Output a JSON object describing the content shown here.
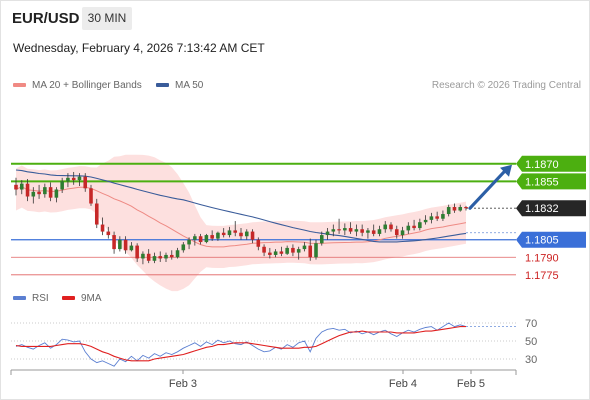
{
  "header": {
    "symbol": "EUR/USD",
    "timeframe": "30 MIN",
    "datetime": "Wednesday, February 4, 2026 7:13:42 AM CET",
    "credit": "Research © 2026 Trading Central"
  },
  "legend": {
    "main": [
      {
        "label": "MA 20 + Bollinger Bands",
        "color": "#f08a84"
      },
      {
        "label": "MA 50",
        "color": "#3a5c9a"
      }
    ],
    "rsi": [
      {
        "label": "RSI",
        "color": "#5b7fd1"
      },
      {
        "label": "9MA",
        "color": "#e02020"
      }
    ]
  },
  "colors": {
    "up": "#2e7d32",
    "down": "#c62828",
    "resistance": "#4caf10",
    "support": "#3a6fd8",
    "support_minor": "#e06060",
    "current": "#262626",
    "arrow": "#2c5fa6",
    "band_fill": "#fde0df"
  },
  "chart_data": [
    {
      "type": "candlestick",
      "x_labels": [
        "Feb 3",
        "Feb 4",
        "Feb 5"
      ],
      "ylim": [
        1.1762,
        1.1928
      ],
      "levels": [
        {
          "value": "1.1870",
          "type": "resistance",
          "label": "1.1870"
        },
        {
          "value": "1.1855",
          "type": "resistance",
          "label": "1.1855"
        },
        {
          "value": "1.1832",
          "type": "current",
          "label": "1.1832"
        },
        {
          "value": "1.1805",
          "type": "support",
          "label": "1.1805"
        },
        {
          "value": "1.1790",
          "type": "support_minor",
          "label": "1.1790"
        },
        {
          "value": "1.1775",
          "type": "support_minor",
          "label": "1.1775"
        }
      ],
      "projection": {
        "from": 1.1832,
        "to": 1.187,
        "direction": "up"
      },
      "candles_ohlc": [
        [
          1.1852,
          1.1858,
          1.1843,
          1.1848
        ],
        [
          1.1848,
          1.1856,
          1.1844,
          1.1853
        ],
        [
          1.1853,
          1.1857,
          1.1838,
          1.1842
        ],
        [
          1.1842,
          1.185,
          1.1836,
          1.1846
        ],
        [
          1.1846,
          1.1852,
          1.184,
          1.1844
        ],
        [
          1.1844,
          1.1853,
          1.1841,
          1.185
        ],
        [
          1.185,
          1.1854,
          1.1838,
          1.1841
        ],
        [
          1.1841,
          1.185,
          1.1837,
          1.1848
        ],
        [
          1.1848,
          1.1858,
          1.1845,
          1.1855
        ],
        [
          1.1855,
          1.1862,
          1.185,
          1.1858
        ],
        [
          1.1858,
          1.1863,
          1.1852,
          1.1856
        ],
        [
          1.1856,
          1.1862,
          1.1851,
          1.1859
        ],
        [
          1.1859,
          1.1862,
          1.1846,
          1.1849
        ],
        [
          1.1849,
          1.1852,
          1.1834,
          1.1836
        ],
        [
          1.1836,
          1.184,
          1.1815,
          1.1818
        ],
        [
          1.1818,
          1.1824,
          1.1809,
          1.1812
        ],
        [
          1.1812,
          1.1816,
          1.1806,
          1.1809
        ],
        [
          1.1809,
          1.1812,
          1.1793,
          1.1797
        ],
        [
          1.1797,
          1.1808,
          1.1795,
          1.1805
        ],
        [
          1.1805,
          1.1808,
          1.1793,
          1.1796
        ],
        [
          1.1796,
          1.1803,
          1.1795,
          1.18
        ],
        [
          1.18,
          1.1802,
          1.1786,
          1.1789
        ],
        [
          1.1789,
          1.1795,
          1.1784,
          1.1793
        ],
        [
          1.1793,
          1.1797,
          1.1785,
          1.1787
        ],
        [
          1.1787,
          1.1794,
          1.1785,
          1.1791
        ],
        [
          1.1791,
          1.1795,
          1.1786,
          1.1789
        ],
        [
          1.1789,
          1.1794,
          1.1786,
          1.1792
        ],
        [
          1.1792,
          1.1796,
          1.1788,
          1.179
        ],
        [
          1.179,
          1.1798,
          1.1789,
          1.1796
        ],
        [
          1.1796,
          1.1803,
          1.1794,
          1.1801
        ],
        [
          1.1801,
          1.1807,
          1.1797,
          1.1805
        ],
        [
          1.1805,
          1.181,
          1.18,
          1.1808
        ],
        [
          1.1808,
          1.181,
          1.1801,
          1.1803
        ],
        [
          1.1803,
          1.181,
          1.1802,
          1.1809
        ],
        [
          1.1809,
          1.1813,
          1.1804,
          1.1806
        ],
        [
          1.1806,
          1.1812,
          1.1804,
          1.1811
        ],
        [
          1.1811,
          1.1815,
          1.1807,
          1.1809
        ],
        [
          1.1809,
          1.1816,
          1.1807,
          1.1813
        ],
        [
          1.1813,
          1.1821,
          1.1808,
          1.1811
        ],
        [
          1.1811,
          1.1815,
          1.1805,
          1.1808
        ],
        [
          1.1808,
          1.1814,
          1.1805,
          1.1812
        ],
        [
          1.1812,
          1.1814,
          1.1802,
          1.1805
        ],
        [
          1.1805,
          1.1807,
          1.1796,
          1.1799
        ],
        [
          1.1799,
          1.1801,
          1.1791,
          1.1794
        ],
        [
          1.1794,
          1.1798,
          1.1789,
          1.1792
        ],
        [
          1.1792,
          1.1797,
          1.179,
          1.1795
        ],
        [
          1.1795,
          1.1799,
          1.1791,
          1.1793
        ],
        [
          1.1793,
          1.18,
          1.1792,
          1.1798
        ],
        [
          1.1798,
          1.1801,
          1.1791,
          1.1794
        ],
        [
          1.1794,
          1.1799,
          1.1788,
          1.1797
        ],
        [
          1.1797,
          1.1803,
          1.1795,
          1.18
        ],
        [
          1.18,
          1.1806,
          1.1787,
          1.179
        ],
        [
          1.179,
          1.1805,
          1.1788,
          1.1802
        ],
        [
          1.1802,
          1.1812,
          1.18,
          1.1809
        ],
        [
          1.1809,
          1.1815,
          1.1805,
          1.1812
        ],
        [
          1.1812,
          1.1818,
          1.1808,
          1.1814
        ],
        [
          1.1814,
          1.1823,
          1.181,
          1.1813
        ],
        [
          1.1813,
          1.1819,
          1.1809,
          1.1815
        ],
        [
          1.1815,
          1.182,
          1.181,
          1.1812
        ],
        [
          1.1812,
          1.1818,
          1.1808,
          1.1814
        ],
        [
          1.1814,
          1.1818,
          1.1808,
          1.1811
        ],
        [
          1.1811,
          1.1815,
          1.1806,
          1.1813
        ],
        [
          1.1813,
          1.1818,
          1.1808,
          1.181
        ],
        [
          1.181,
          1.1817,
          1.1808,
          1.1814
        ],
        [
          1.1814,
          1.1821,
          1.1811,
          1.1818
        ],
        [
          1.1818,
          1.182,
          1.1812,
          1.1814
        ],
        [
          1.1814,
          1.1817,
          1.1806,
          1.1809
        ],
        [
          1.1809,
          1.1816,
          1.1806,
          1.1813
        ],
        [
          1.1813,
          1.182,
          1.181,
          1.1817
        ],
        [
          1.1817,
          1.1822,
          1.1813,
          1.1815
        ],
        [
          1.1815,
          1.1823,
          1.1813,
          1.182
        ],
        [
          1.182,
          1.1826,
          1.1818,
          1.1822
        ],
        [
          1.1822,
          1.1828,
          1.1819,
          1.1825
        ],
        [
          1.1825,
          1.1829,
          1.1821,
          1.1823
        ],
        [
          1.1823,
          1.183,
          1.1821,
          1.1827
        ],
        [
          1.1827,
          1.1835,
          1.1825,
          1.1833
        ],
        [
          1.1833,
          1.1836,
          1.1828,
          1.183
        ],
        [
          1.183,
          1.1835,
          1.1829,
          1.1833
        ],
        [
          1.1833,
          1.1834,
          1.183,
          1.1832
        ]
      ]
    },
    {
      "type": "line",
      "name": "RSI",
      "ylim": [
        20,
        80
      ],
      "y_ticks": [
        "70",
        "50",
        "30"
      ],
      "rsi_values": [
        44,
        46,
        43,
        41,
        45,
        48,
        42,
        46,
        52,
        51,
        49,
        50,
        38,
        30,
        26,
        28,
        25,
        22,
        30,
        27,
        33,
        28,
        34,
        31,
        36,
        33,
        37,
        35,
        38,
        42,
        45,
        48,
        44,
        49,
        46,
        51,
        48,
        50,
        47,
        46,
        49,
        45,
        41,
        38,
        39,
        43,
        41,
        46,
        43,
        48,
        50,
        38,
        53,
        60,
        63,
        64,
        62,
        63,
        59,
        61,
        58,
        60,
        57,
        60,
        62,
        58,
        55,
        59,
        62,
        60,
        63,
        65,
        66,
        62,
        66,
        70,
        66,
        68,
        66
      ],
      "ma_values": [
        45,
        44,
        44,
        44,
        44,
        44,
        44,
        45,
        46,
        47,
        47,
        47,
        46,
        44,
        41,
        38,
        36,
        33,
        31,
        29,
        28,
        28,
        28,
        28,
        30,
        31,
        32,
        33,
        34,
        35,
        37,
        39,
        41,
        43,
        44,
        46,
        46,
        47,
        48,
        48,
        48,
        47,
        46,
        45,
        44,
        43,
        42,
        42,
        42,
        42,
        43,
        43,
        44,
        47,
        50,
        53,
        56,
        58,
        60,
        60,
        61,
        60,
        60,
        60,
        60,
        60,
        59,
        59,
        59,
        59,
        60,
        61,
        61,
        62,
        63,
        64,
        65,
        66,
        66
      ]
    }
  ]
}
